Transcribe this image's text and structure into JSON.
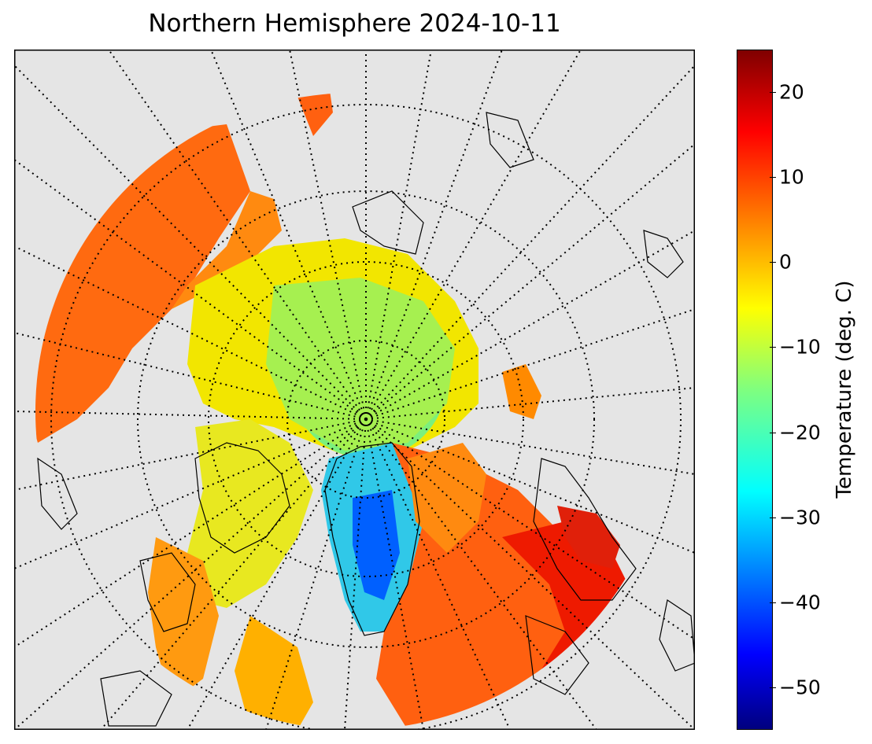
{
  "title": "Northern Hemisphere 2024-10-11",
  "map": {
    "projection": "north-polar-stereographic",
    "background_color": "#e5e5e5",
    "field": "temperature",
    "graticule_style": "dotted"
  },
  "colorbar": {
    "label": "Temperature (deg. C)",
    "colormap": "jet",
    "range": [
      -55,
      25
    ],
    "ticks": [
      "20",
      "10",
      "0",
      "−10",
      "−20",
      "−30",
      "−40",
      "−50"
    ],
    "tick_values": [
      20,
      10,
      0,
      -10,
      -20,
      -30,
      -40,
      -50
    ]
  },
  "colors": {
    "land_outline": "#000000",
    "frame": "#000000"
  }
}
